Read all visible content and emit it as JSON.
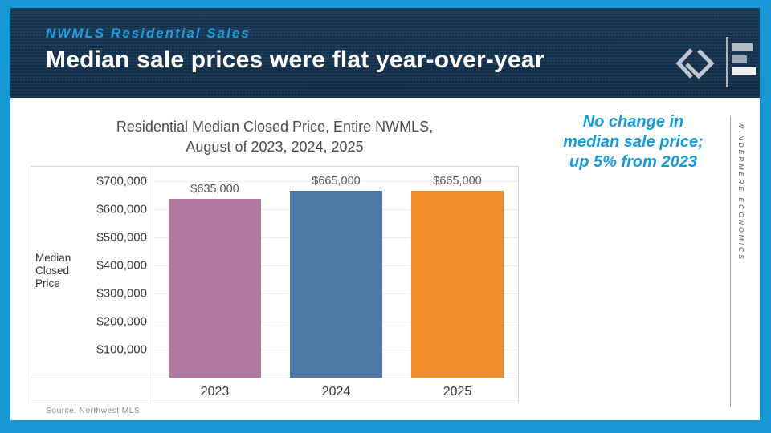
{
  "colors": {
    "accent": "#1798d5",
    "header_background": "#16334e",
    "eyebrow_blue": "#1e9edd",
    "callout_blue": "#169bda",
    "bar_purple": "#b07aa1",
    "bar_blue": "#4e79a7",
    "bar_orange": "#f28e2b"
  },
  "header": {
    "eyebrow": "NWMLS Residential Sales",
    "title": "Median sale prices were flat year-over-year"
  },
  "callout": {
    "lines": [
      "No change in",
      "median sale price;",
      "up 5% from 2023"
    ]
  },
  "brand": {
    "vertical_text": "WINDERMERE ECONOMICS",
    "logo": "windermere-w-mark",
    "econ_icon": "economics-bar-chart-mark"
  },
  "chart_data": {
    "type": "bar",
    "title": "Residential Median Closed Price, Entire NWMLS, August of 2023, 2024, 2025",
    "title_line1": "Residential Median Closed Price, Entire NWMLS,",
    "title_line2": "August of 2023, 2024, 2025",
    "categories": [
      "2023",
      "2024",
      "2025"
    ],
    "values": [
      635000,
      665000,
      665000
    ],
    "bar_labels": [
      "$635,000",
      "$665,000",
      "$665,000"
    ],
    "bar_colors": [
      "#b07aa1",
      "#4e79a7",
      "#f28e2b"
    ],
    "xlabel": "",
    "ylabel": "Median Closed Price",
    "ylim": [
      0,
      750000
    ],
    "yticks": [
      {
        "value": 100000,
        "label": "$100,000"
      },
      {
        "value": 200000,
        "label": "$200,000"
      },
      {
        "value": 300000,
        "label": "$300,000"
      },
      {
        "value": 400000,
        "label": "$400,000"
      },
      {
        "value": 500000,
        "label": "$500,000"
      },
      {
        "value": 600000,
        "label": "$600,000"
      },
      {
        "value": 700000,
        "label": "$700,000"
      }
    ],
    "grid": true,
    "legend": false,
    "source": "Source: Northwest MLS"
  }
}
